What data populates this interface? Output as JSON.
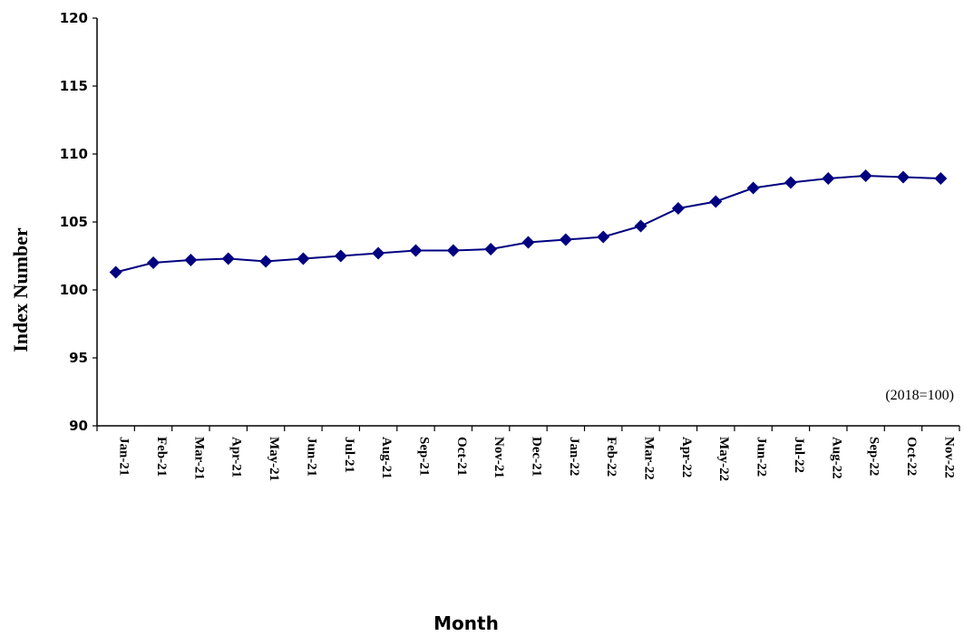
{
  "chart_data": {
    "type": "line",
    "title": "",
    "xlabel": "Month",
    "ylabel": "Index Number",
    "ylim": [
      90,
      120
    ],
    "yticks": [
      "90",
      "95",
      "100",
      "105",
      "110",
      "115",
      "120"
    ],
    "categories": [
      "Jan-21",
      "Feb-21",
      "Mar-21",
      "Apr-21",
      "May-21",
      "Jun-21",
      "Jul-21",
      "Aug-21",
      "Sep-21",
      "Oct-21",
      "Nov-21",
      "Dec-21",
      "Jan-22",
      "Feb-22",
      "Mar-22",
      "Apr-22",
      "May-22",
      "Jun-22",
      "Jul-22",
      "Aug-22",
      "Sep-22",
      "Oct-22",
      "Nov-22"
    ],
    "series": [
      {
        "values": [
          101.3,
          102.0,
          102.2,
          102.3,
          102.1,
          102.3,
          102.5,
          102.7,
          102.9,
          102.9,
          103.0,
          103.5,
          103.7,
          103.9,
          104.7,
          106.0,
          106.5,
          107.5,
          107.9,
          108.2,
          108.4,
          108.3,
          108.2
        ],
        "color": "#000080",
        "marker": "diamond"
      }
    ],
    "annotation": "(2018=100)",
    "grid": false,
    "legend": "none"
  }
}
